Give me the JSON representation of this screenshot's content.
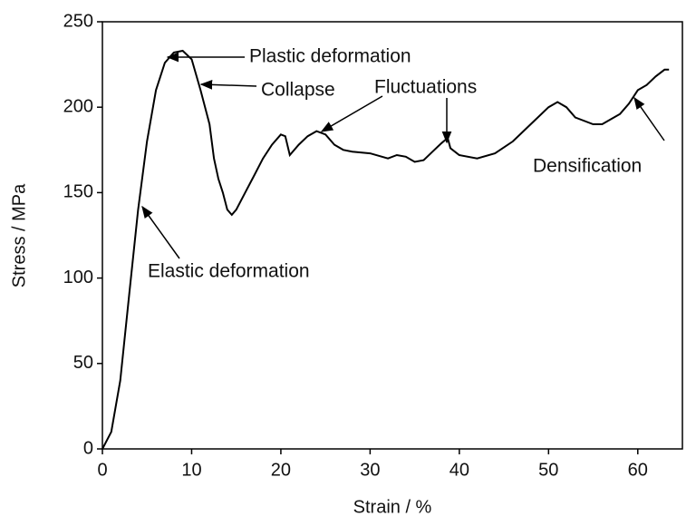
{
  "chart_data": {
    "type": "line",
    "xlabel": "Strain / %",
    "ylabel": "Stress / MPa",
    "xlim": [
      0,
      65
    ],
    "ylim": [
      0,
      250
    ],
    "xticks": [
      0,
      10,
      20,
      30,
      40,
      50,
      60
    ],
    "yticks": [
      0,
      50,
      100,
      150,
      200,
      250
    ],
    "series": [
      {
        "color": "#000000",
        "x": [
          0,
          1,
          2,
          3,
          4,
          5,
          6,
          7,
          8,
          9,
          10,
          11,
          12,
          12.5,
          13,
          13.5,
          14,
          14.5,
          15,
          16,
          17,
          18,
          19,
          20,
          20.5,
          21,
          22,
          23,
          24,
          25,
          26,
          27,
          28,
          30,
          32,
          33,
          34,
          35,
          36,
          37,
          38,
          38.7,
          39,
          40,
          42,
          44,
          46,
          48,
          50,
          51,
          52,
          53,
          55,
          56,
          58,
          59,
          60,
          61,
          62,
          63,
          63.5
        ],
        "values": [
          0,
          10,
          40,
          90,
          140,
          180,
          210,
          226,
          232,
          233,
          228,
          210,
          190,
          170,
          158,
          150,
          140,
          137,
          140,
          150,
          160,
          170,
          178,
          184,
          183,
          172,
          178,
          183,
          186,
          184,
          178,
          175,
          174,
          173,
          170,
          172,
          171,
          168,
          169,
          174,
          179,
          182,
          176,
          172,
          170,
          173,
          180,
          190,
          200,
          203,
          200,
          194,
          190,
          190,
          196,
          202,
          210,
          213,
          218,
          222,
          222
        ]
      }
    ],
    "annotations": [
      "Plastic deformation",
      "Collapse",
      "Fluctuations",
      "Elastic deformation",
      "Densification"
    ]
  }
}
